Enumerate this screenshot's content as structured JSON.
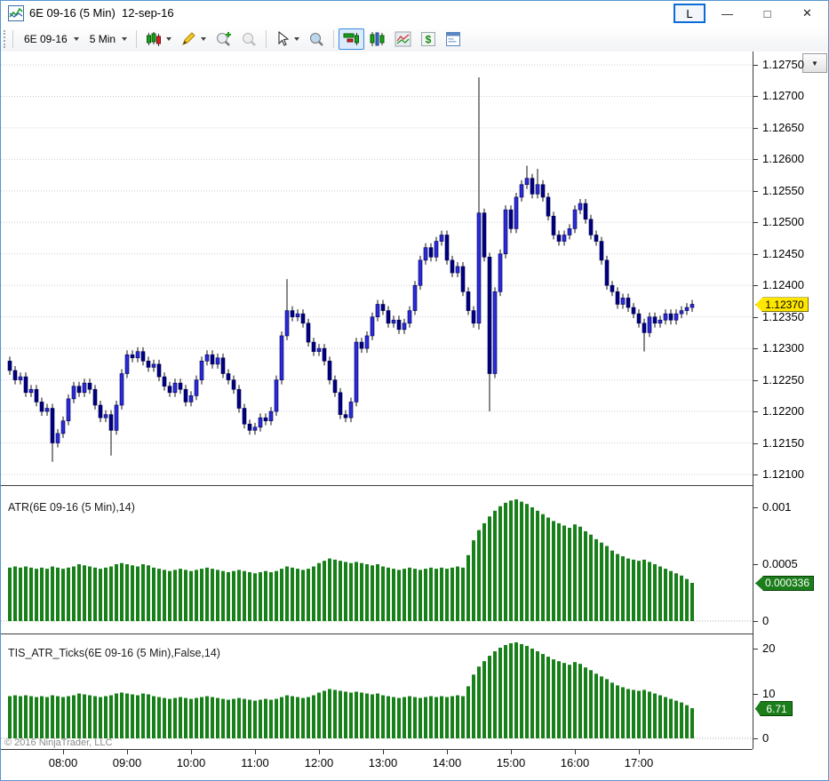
{
  "window": {
    "title": "6E 09-16 (5 Min)  12-sep-16",
    "link_button_label": "L",
    "minimize_glyph": "—",
    "maximize_glyph": "□",
    "close_glyph": "✕"
  },
  "toolbar": {
    "instrument_label": "6E 09-16",
    "interval_label": "5 Min",
    "icons": [
      "candle-style-icon",
      "drawing-pencil-icon",
      "zoom-in-icon",
      "zoom-out-icon",
      "cursor-icon",
      "data-box-icon",
      "chart-trader-icon",
      "bar-type-icon",
      "overlay-chart-icon",
      "account-dollar-icon",
      "properties-icon"
    ],
    "selected_icon": "chart-trader-icon"
  },
  "price_axis": {
    "ticks": [
      "1.12750",
      "1.12700",
      "1.12650",
      "1.12600",
      "1.12550",
      "1.12500",
      "1.12450",
      "1.12400",
      "1.12350",
      "1.12300",
      "1.12250",
      "1.12200",
      "1.12150",
      "1.12100"
    ],
    "last_price_label": "1.12370",
    "last_price_color": "#ffe600"
  },
  "atr_panel": {
    "title": "ATR(6E 09-16 (5 Min),14)",
    "ticks": [
      "0.001",
      "0.0005",
      "0"
    ],
    "last_label": "0.000336",
    "badge_color": "#1b7e1b"
  },
  "tis_panel": {
    "title": "TIS_ATR_Ticks(6E 09-16 (5 Min),False,14)",
    "ticks": [
      "20",
      "10",
      "0"
    ],
    "last_label": "6.71",
    "badge_color": "#1b7e1b"
  },
  "time_axis": {
    "labels": [
      "08:00",
      "09:00",
      "10:00",
      "11:00",
      "12:00",
      "13:00",
      "14:00",
      "15:00",
      "16:00",
      "17:00"
    ]
  },
  "footer_copyright": "© 2016 NinjaTrader, LLC",
  "chart_data": [
    {
      "type": "candlestick",
      "name": "6E 09-16 (5 Min)",
      "date": "12-sep-16",
      "start_time": "07:10",
      "interval_minutes": 5,
      "up_color": "#2b2bd8",
      "down_color": "#00007e",
      "wick_color": "#111111",
      "grid": "horizontal-dotted",
      "ylim": [
        1.12082,
        1.12771
      ],
      "yticks": [
        1.1275,
        1.127,
        1.1265,
        1.126,
        1.1255,
        1.125,
        1.1245,
        1.124,
        1.1235,
        1.123,
        1.1225,
        1.122,
        1.1215,
        1.121
      ],
      "open_first": 1.1228,
      "default_wick": 7e-05,
      "closes": [
        1.12265,
        1.1225,
        1.12255,
        1.1223,
        1.12235,
        1.12215,
        1.122,
        1.12205,
        1.1215,
        1.12165,
        1.12185,
        1.1222,
        1.1224,
        1.1223,
        1.12245,
        1.12235,
        1.1221,
        1.1219,
        1.12195,
        1.1217,
        1.1221,
        1.1226,
        1.1229,
        1.12285,
        1.12295,
        1.1228,
        1.1227,
        1.12275,
        1.12255,
        1.1224,
        1.1223,
        1.12245,
        1.12235,
        1.12215,
        1.12225,
        1.1225,
        1.1228,
        1.1229,
        1.12275,
        1.12285,
        1.1226,
        1.1225,
        1.12235,
        1.12205,
        1.1218,
        1.1217,
        1.12175,
        1.1219,
        1.12185,
        1.122,
        1.1225,
        1.1232,
        1.1236,
        1.1235,
        1.12355,
        1.1234,
        1.1231,
        1.12295,
        1.123,
        1.1228,
        1.1225,
        1.1223,
        1.12195,
        1.1219,
        1.12215,
        1.1231,
        1.123,
        1.1232,
        1.1235,
        1.1237,
        1.1236,
        1.1234,
        1.12345,
        1.1233,
        1.1234,
        1.1236,
        1.124,
        1.1244,
        1.1246,
        1.12445,
        1.1247,
        1.1248,
        1.1244,
        1.1242,
        1.1243,
        1.1239,
        1.1236,
        1.1234,
        1.12515,
        1.12445,
        1.1226,
        1.1239,
        1.1245,
        1.1252,
        1.1249,
        1.1254,
        1.1256,
        1.1257,
        1.12545,
        1.1256,
        1.1254,
        1.1251,
        1.1248,
        1.1247,
        1.1248,
        1.1249,
        1.1252,
        1.1253,
        1.12505,
        1.1248,
        1.1247,
        1.1244,
        1.124,
        1.1239,
        1.1237,
        1.1238,
        1.12365,
        1.12355,
        1.1234,
        1.12325,
        1.1235,
        1.1234,
        1.12345,
        1.12355,
        1.12345,
        1.12355,
        1.1236,
        1.12365,
        1.1237
      ],
      "wick_overrides": {
        "8": {
          "low": 1.1212
        },
        "19": {
          "low": 1.1213
        },
        "52": {
          "high": 1.1241
        },
        "88": {
          "high": 1.1273,
          "low": 1.1233
        },
        "90": {
          "low": 1.122
        },
        "97": {
          "high": 1.1259
        },
        "99": {
          "high": 1.12585
        },
        "119": {
          "low": 1.12295
        }
      },
      "last_price": 1.1237
    },
    {
      "type": "bar",
      "name": "ATR(6E 09-16 (5 Min),14)",
      "color": "#178018",
      "ylim": [
        0,
        0.0011875
      ],
      "yticks": [
        0,
        0.0005,
        0.001
      ],
      "last_value": 0.000336,
      "values": [
        0.00047,
        0.00048,
        0.00047,
        0.00048,
        0.00047,
        0.00046,
        0.00047,
        0.00046,
        0.00048,
        0.00047,
        0.00046,
        0.00047,
        0.00048,
        0.0005,
        0.00049,
        0.00048,
        0.00047,
        0.00046,
        0.00047,
        0.00048,
        0.0005,
        0.00051,
        0.0005,
        0.00049,
        0.00048,
        0.0005,
        0.00049,
        0.00047,
        0.00046,
        0.00045,
        0.00044,
        0.00045,
        0.00046,
        0.00045,
        0.00044,
        0.00045,
        0.00046,
        0.00047,
        0.00046,
        0.00045,
        0.00044,
        0.00043,
        0.00044,
        0.00045,
        0.00044,
        0.00043,
        0.00042,
        0.00043,
        0.00044,
        0.00043,
        0.00044,
        0.00046,
        0.00048,
        0.00047,
        0.00046,
        0.00045,
        0.00046,
        0.00048,
        0.00051,
        0.00053,
        0.00055,
        0.00054,
        0.00053,
        0.00052,
        0.00051,
        0.00052,
        0.00051,
        0.0005,
        0.00049,
        0.0005,
        0.00048,
        0.00047,
        0.00046,
        0.00045,
        0.00046,
        0.00047,
        0.00046,
        0.00045,
        0.00046,
        0.00047,
        0.00046,
        0.00047,
        0.00046,
        0.00047,
        0.00048,
        0.00047,
        0.00058,
        0.00071,
        0.0008,
        0.00086,
        0.00092,
        0.00097,
        0.00101,
        0.00104,
        0.00106,
        0.00107,
        0.00105,
        0.00103,
        0.001,
        0.00097,
        0.00094,
        0.00091,
        0.00088,
        0.00086,
        0.00084,
        0.00082,
        0.00085,
        0.00083,
        0.00079,
        0.00076,
        0.00072,
        0.00069,
        0.00066,
        0.00062,
        0.00059,
        0.00057,
        0.00055,
        0.00054,
        0.00053,
        0.00054,
        0.00052,
        0.0005,
        0.00048,
        0.00046,
        0.00044,
        0.00042,
        0.0004,
        0.00037,
        0.000336
      ]
    },
    {
      "type": "bar",
      "name": "TIS_ATR_Ticks(6E 09-16 (5 Min),False,14)",
      "color": "#178018",
      "derived_from": "ATR values divided by tick size",
      "tick_size": 5e-05,
      "ylim": [
        0,
        23.2
      ],
      "yticks": [
        0,
        10,
        20
      ],
      "last_value": 6.71
    }
  ]
}
